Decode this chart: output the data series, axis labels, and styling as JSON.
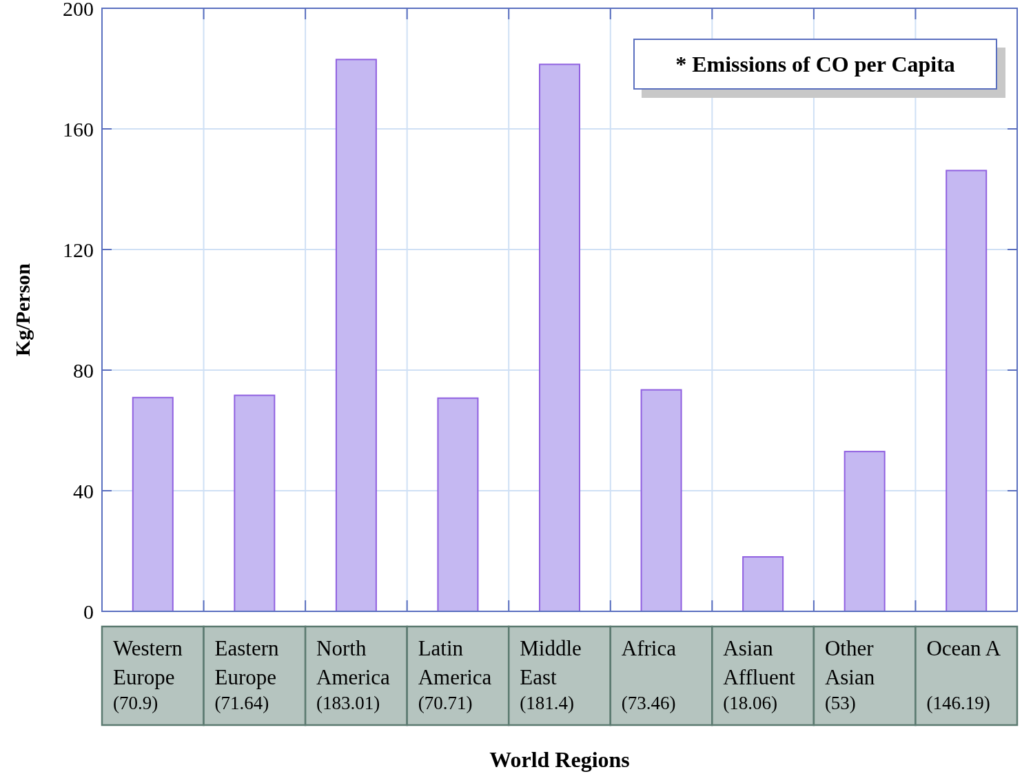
{
  "chart_data": {
    "type": "bar",
    "title": "* Emissions of CO per Capita",
    "xlabel": "World Regions",
    "ylabel": "Kg/Person",
    "categories": [
      "Western\nEurope",
      "Eastern\nEurope",
      "North\nAmerica",
      "Latin\nAmerica",
      "Middle\nEast",
      "Africa",
      "Asian\nAffluent",
      "Other\nAsian",
      "Ocean A"
    ],
    "values": [
      70.9,
      71.64,
      183.01,
      70.71,
      181.4,
      73.46,
      18.06,
      53,
      146.19
    ],
    "value_labels": [
      "(70.9)",
      "(71.64)",
      "(183.01)",
      "(70.71)",
      "(181.4)",
      "(73.46)",
      "(18.06)",
      "(53)",
      "(146.19)"
    ],
    "color": "#c5b8f2",
    "ylim": [
      0,
      200
    ],
    "yticks": [
      0,
      40,
      80,
      120,
      160,
      200
    ],
    "grid": true
  }
}
